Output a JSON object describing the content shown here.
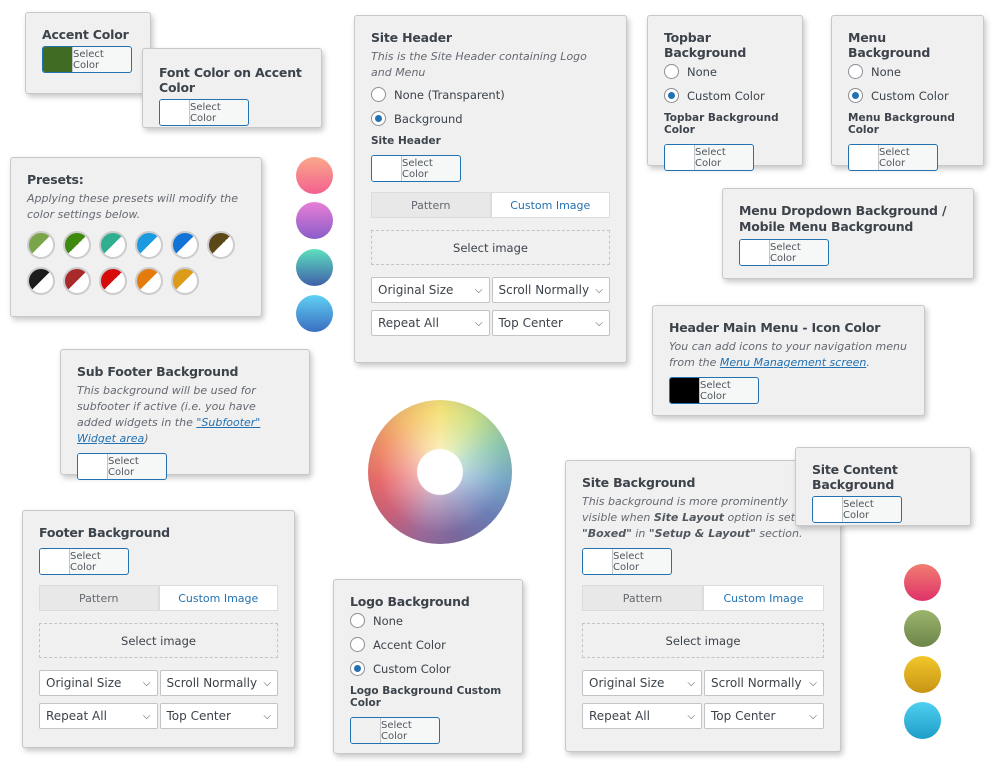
{
  "select_color": "Select Color",
  "accent": {
    "title": "Accent Color",
    "swatch": "#3f6b23"
  },
  "font_accent": {
    "title": "Font Color on Accent Color"
  },
  "presets": {
    "title": "Presets:",
    "desc": "Applying these presets will modify the color settings below.",
    "colors": [
      "#7aa54a",
      "#3f8a0e",
      "#2fae90",
      "#1a9be0",
      "#1273d6",
      "#5c4719",
      "#1d1d1d",
      "#a82a2a",
      "#d80b0b",
      "#e37c0d",
      "#dc9c1a"
    ]
  },
  "site_header": {
    "title": "Site Header",
    "desc": "This is the Site Header containing Logo and Menu",
    "opt1": "None (Transparent)",
    "opt2": "Background",
    "label": "Site Header"
  },
  "common": {
    "pattern": "Pattern",
    "custom_image": "Custom Image",
    "select_image": "Select image",
    "size": "Original Size",
    "scroll": "Scroll Normally",
    "repeat": "Repeat All",
    "position": "Top Center"
  },
  "topbar": {
    "title": "Topbar Background",
    "opt1": "None",
    "opt2": "Custom Color",
    "label": "Topbar Background Color"
  },
  "menu": {
    "title": "Menu Background",
    "opt1": "None",
    "opt2": "Custom Color",
    "label": "Menu Background Color"
  },
  "dropdown": {
    "title": "Menu Dropdown Background / Mobile Menu Background"
  },
  "icon_color": {
    "title": "Header Main Menu - Icon Color",
    "desc": "You can add icons to your navigation menu from the ",
    "link": "Menu Management screen",
    "swatch": "#000000"
  },
  "subfooter": {
    "title": "Sub Footer Background",
    "desc": "This background will be used for subfooter if active (i.e. you have added widgets in the ",
    "link": "\"Subfooter\" Widget area",
    "tail": ")"
  },
  "footer": {
    "title": "Footer Background"
  },
  "logo": {
    "title": "Logo Background",
    "opt1": "None",
    "opt2": "Accent Color",
    "opt3": "Custom Color",
    "label": "Logo Background Custom Color"
  },
  "site_bg": {
    "title": "Site Background",
    "d1": "This background is more prominently visible when ",
    "b1": "Site Layout",
    "d2": " option is set to ",
    "b2": "\"Boxed\"",
    "d3": " in ",
    "b3": "\"Setup & Layout\"",
    "d4": " section."
  },
  "site_content": {
    "title": "Site Content Background"
  },
  "gradients_left": [
    [
      "#f9a98a",
      "#f4608f"
    ],
    [
      "#e77fd6",
      "#8a5cc9"
    ],
    [
      "#5ee0c0",
      "#3f5fa8"
    ],
    [
      "#5fd0f5",
      "#3b6ec0"
    ]
  ],
  "gradients_right": [
    [
      "#f07e70",
      "#e0316a"
    ],
    [
      "#9bb56e",
      "#6d8548"
    ],
    [
      "#f2c72a",
      "#c89415"
    ],
    [
      "#4fcff0",
      "#1e9ec8"
    ]
  ]
}
